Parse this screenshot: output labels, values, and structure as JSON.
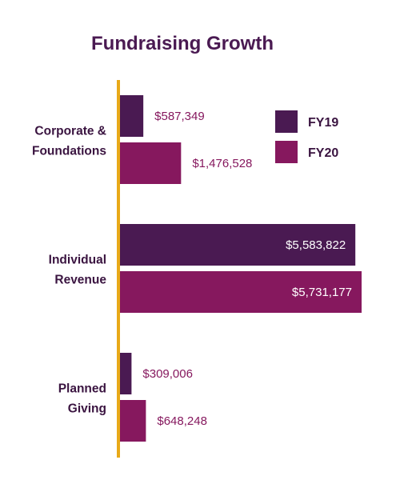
{
  "chart_data": {
    "type": "bar",
    "orientation": "horizontal",
    "title": "Fundraising Growth",
    "xlabel": "",
    "ylabel": "",
    "xlim": [
      0,
      5900000
    ],
    "grid": false,
    "legend_position": "top-right",
    "categories": [
      [
        "Corporate &",
        "Foundations"
      ],
      [
        "Individual",
        "Revenue"
      ],
      [
        "Planned",
        "Giving"
      ]
    ],
    "series": [
      {
        "name": "FY19",
        "color": "#4a1a52",
        "values": [
          587349,
          5583822,
          309006
        ],
        "labels": [
          "$587,349",
          "$5,583,822",
          "$309,006"
        ]
      },
      {
        "name": "FY20",
        "color": "#86185e",
        "values": [
          1476528,
          5731177,
          648248
        ],
        "labels": [
          "$1,476,528",
          "$5,731,177",
          "$648,248"
        ]
      }
    ],
    "colors": {
      "title": "#4a1a52",
      "category_text": "#3a1440",
      "value_text": "#86185e",
      "axis": "#e8a918",
      "inside_label": "#ffffff"
    }
  }
}
